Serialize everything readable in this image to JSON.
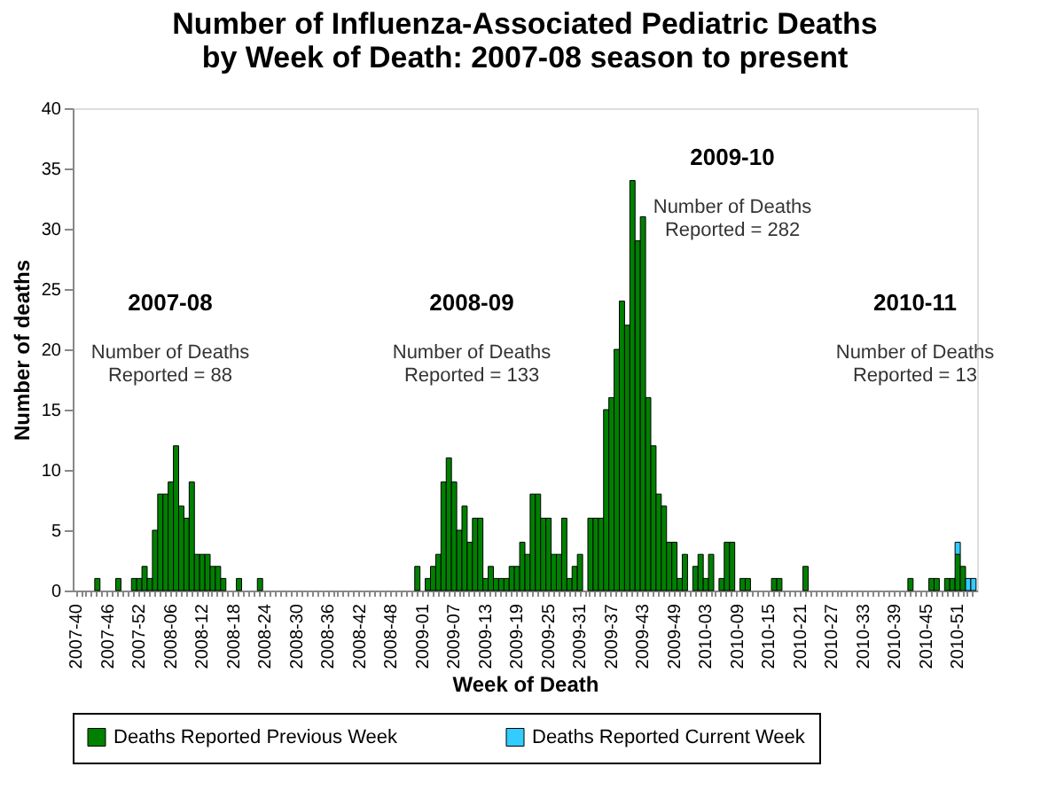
{
  "chart_data": {
    "type": "bar",
    "stacked": true,
    "title": "Number of Influenza-Associated Pediatric Deaths\nby Week of Death: 2007-08 season to present",
    "xlabel": "Week of Death",
    "ylabel": "Number of deaths",
    "categories": [
      "2007-40",
      null,
      null,
      null,
      null,
      null,
      "2007-46",
      null,
      null,
      null,
      null,
      null,
      "2007-52",
      null,
      null,
      null,
      null,
      null,
      "2008-06",
      null,
      null,
      null,
      null,
      null,
      "2008-12",
      null,
      null,
      null,
      null,
      null,
      "2008-18",
      null,
      null,
      null,
      null,
      null,
      "2008-24",
      null,
      null,
      null,
      null,
      null,
      "2008-30",
      null,
      null,
      null,
      null,
      null,
      "2008-36",
      null,
      null,
      null,
      null,
      null,
      "2008-42",
      null,
      null,
      null,
      null,
      null,
      "2008-48",
      null,
      null,
      null,
      null,
      null,
      "2009-01",
      null,
      null,
      null,
      null,
      null,
      "2009-07",
      null,
      null,
      null,
      null,
      null,
      "2009-13",
      null,
      null,
      null,
      null,
      null,
      "2009-19",
      null,
      null,
      null,
      null,
      null,
      "2009-25",
      null,
      null,
      null,
      null,
      null,
      "2009-31",
      null,
      null,
      null,
      null,
      null,
      "2009-37",
      null,
      null,
      null,
      null,
      null,
      "2009-43",
      null,
      null,
      null,
      null,
      null,
      "2009-49",
      null,
      null,
      null,
      null,
      null,
      "2010-03",
      null,
      null,
      null,
      null,
      null,
      "2010-09",
      null,
      null,
      null,
      null,
      null,
      "2010-15",
      null,
      null,
      null,
      null,
      null,
      "2010-21",
      null,
      null,
      null,
      null,
      null,
      "2010-27",
      null,
      null,
      null,
      null,
      null,
      "2010-33",
      null,
      null,
      null,
      null,
      null,
      "2010-39",
      null,
      null,
      null,
      null,
      null,
      "2010-45",
      null,
      null,
      null,
      null,
      null,
      "2010-51",
      null,
      null,
      null
    ],
    "series": [
      {
        "name": "Deaths Reported Previous Week",
        "color": "#008000",
        "values": [
          0,
          0,
          0,
          0,
          1,
          0,
          0,
          0,
          1,
          0,
          0,
          1,
          1,
          2,
          1,
          5,
          8,
          8,
          9,
          12,
          7,
          6,
          9,
          3,
          3,
          3,
          2,
          2,
          1,
          0,
          0,
          1,
          0,
          0,
          0,
          1,
          0,
          0,
          0,
          0,
          0,
          0,
          0,
          0,
          0,
          0,
          0,
          0,
          0,
          0,
          0,
          0,
          0,
          0,
          0,
          0,
          0,
          0,
          0,
          0,
          0,
          0,
          0,
          0,
          0,
          2,
          0,
          1,
          2,
          3,
          9,
          11,
          9,
          5,
          7,
          4,
          6,
          6,
          1,
          2,
          1,
          1,
          1,
          2,
          2,
          4,
          3,
          8,
          8,
          6,
          6,
          3,
          3,
          6,
          1,
          2,
          3,
          0,
          6,
          6,
          6,
          15,
          16,
          20,
          24,
          22,
          34,
          29,
          31,
          16,
          12,
          8,
          7,
          4,
          4,
          1,
          3,
          0,
          2,
          3,
          1,
          3,
          0,
          1,
          4,
          4,
          0,
          1,
          1,
          0,
          0,
          0,
          0,
          1,
          1,
          0,
          0,
          0,
          0,
          2,
          0,
          0,
          0,
          0,
          0,
          0,
          0,
          0,
          0,
          0,
          0,
          0,
          0,
          0,
          0,
          0,
          0,
          0,
          0,
          1,
          0,
          0,
          0,
          1,
          1,
          0,
          1,
          1,
          3,
          2,
          0,
          0
        ]
      },
      {
        "name": "Deaths Reported Current Week",
        "color": "#33ccff",
        "values": [
          null,
          null,
          null,
          null,
          null,
          null,
          null,
          null,
          null,
          null,
          null,
          null,
          null,
          null,
          null,
          null,
          null,
          null,
          null,
          null,
          null,
          null,
          null,
          null,
          null,
          null,
          null,
          null,
          null,
          null,
          null,
          null,
          null,
          null,
          null,
          null,
          null,
          null,
          null,
          null,
          null,
          null,
          null,
          null,
          null,
          null,
          null,
          null,
          null,
          null,
          null,
          null,
          null,
          null,
          null,
          null,
          null,
          null,
          null,
          null,
          null,
          null,
          null,
          null,
          null,
          null,
          null,
          null,
          null,
          null,
          null,
          null,
          null,
          null,
          null,
          null,
          null,
          null,
          null,
          null,
          null,
          null,
          null,
          null,
          null,
          null,
          null,
          null,
          null,
          null,
          null,
          null,
          null,
          null,
          null,
          null,
          null,
          null,
          null,
          null,
          null,
          null,
          null,
          null,
          null,
          null,
          null,
          null,
          null,
          null,
          null,
          null,
          null,
          null,
          null,
          null,
          null,
          null,
          null,
          null,
          null,
          null,
          null,
          null,
          null,
          null,
          null,
          null,
          null,
          null,
          null,
          null,
          null,
          null,
          null,
          null,
          null,
          null,
          null,
          null,
          null,
          null,
          null,
          null,
          null,
          null,
          null,
          null,
          null,
          null,
          null,
          null,
          null,
          null,
          null,
          null,
          null,
          null,
          null,
          null,
          null,
          null,
          null,
          null,
          null,
          null,
          null,
          null,
          1,
          null,
          1,
          1
        ]
      }
    ],
    "ylim": [
      0,
      40
    ],
    "yticks": [
      0,
      5,
      10,
      15,
      20,
      25,
      30,
      35,
      40
    ],
    "grid": false,
    "legend": "bottom",
    "annotations": [
      "2007-08",
      "Number of Deaths\nReported = 88",
      "2008-09",
      "Number of Deaths\nReported = 133",
      "2009-10",
      "Number of Deaths\nReported = 282",
      "2010-11",
      "Number of Deaths\nReported = 13"
    ]
  }
}
